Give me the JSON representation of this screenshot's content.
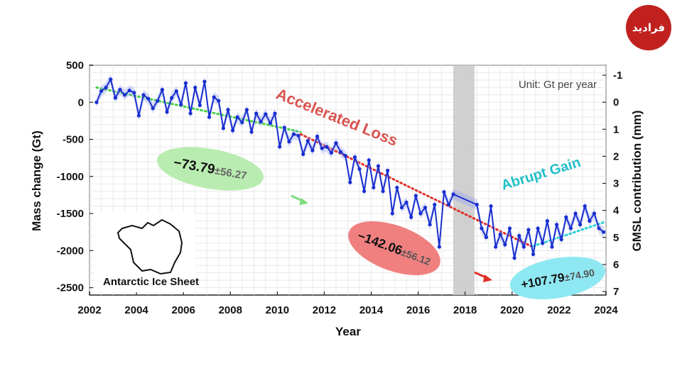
{
  "logo": {
    "text": "فرادید"
  },
  "chart_data": {
    "type": "line",
    "xlabel": "Year",
    "ylabel": "Mass change (Gt)",
    "y2label": "GMSL contribution (mm)",
    "xlim": [
      2002,
      2024
    ],
    "ylim": [
      -2600,
      500
    ],
    "y2lim": [
      7,
      -1
    ],
    "xticks": [
      "2002",
      "2004",
      "2006",
      "2008",
      "2010",
      "2012",
      "2014",
      "2016",
      "2018",
      "2020",
      "2022",
      "2024"
    ],
    "yticks": [
      "500",
      "0",
      "-500",
      "-1000",
      "-1500",
      "-2000",
      "-2500"
    ],
    "y2ticks": [
      "-1",
      "0",
      "1",
      "2",
      "3",
      "4",
      "5",
      "6",
      "7"
    ],
    "grid": true,
    "unit_note": "Unit: Gt per year",
    "gap_band": {
      "x0": 2017.5,
      "x1": 2018.4
    },
    "inset_label": "Antarctic Ice Sheet",
    "phase_labels": [
      {
        "text": "Accelerated Loss",
        "color": "#d9534f"
      },
      {
        "text": "Abrupt Gain",
        "color": "#22bfc8"
      }
    ],
    "trend_rates": [
      {
        "value": "−73.79",
        "uncertainty": "±56.27",
        "fill": "#b9ecb0"
      },
      {
        "value": "−142.06",
        "uncertainty": "±56.12",
        "fill": "#f08080"
      },
      {
        "value": "+107.79",
        "uncertainty": "±74.90",
        "fill": "#8ee8f2"
      }
    ],
    "trend_lines": [
      {
        "name": "2002-2011",
        "color": "#46d246",
        "x": [
          2002.3,
          2011.0
        ],
        "y": [
          200,
          -400
        ]
      },
      {
        "name": "2011-2020",
        "color": "#e0302a",
        "x": [
          2011.0,
          2020.8
        ],
        "y": [
          -430,
          -1940
        ]
      },
      {
        "name": "2021-2023",
        "color": "#2ad0d8",
        "x": [
          2020.9,
          2023.9
        ],
        "y": [
          -1940,
          -1620
        ]
      }
    ],
    "series": [
      {
        "color": "#1a2fd0",
        "x": [
          2002.3,
          2002.5,
          2002.7,
          2002.9,
          2003.1,
          2003.3,
          2003.5,
          2003.7,
          2003.9,
          2004.1,
          2004.3,
          2004.5,
          2004.7,
          2004.9,
          2005.1,
          2005.3,
          2005.5,
          2005.7,
          2005.9,
          2006.1,
          2006.3,
          2006.5,
          2006.7,
          2006.9,
          2007.1,
          2007.3,
          2007.5,
          2007.7,
          2007.9,
          2008.1,
          2008.3,
          2008.5,
          2008.7,
          2008.9,
          2009.1,
          2009.3,
          2009.5,
          2009.7,
          2009.9,
          2010.1,
          2010.3,
          2010.5,
          2010.7,
          2010.9,
          2011.1,
          2011.3,
          2011.5,
          2011.7,
          2011.9,
          2012.1,
          2012.3,
          2012.5,
          2012.7,
          2012.9,
          2013.1,
          2013.3,
          2013.5,
          2013.7,
          2013.9,
          2014.1,
          2014.3,
          2014.5,
          2014.7,
          2014.9,
          2015.1,
          2015.3,
          2015.5,
          2015.7,
          2015.9,
          2016.1,
          2016.3,
          2016.5,
          2016.7,
          2016.9,
          2017.1,
          2017.3,
          2017.5,
          2018.5,
          2018.7,
          2018.9,
          2019.1,
          2019.3,
          2019.5,
          2019.7,
          2019.9,
          2020.1,
          2020.3,
          2020.5,
          2020.7,
          2020.9,
          2021.1,
          2021.3,
          2021.5,
          2021.7,
          2021.9,
          2022.1,
          2022.3,
          2022.5,
          2022.7,
          2022.9,
          2023.1,
          2023.3,
          2023.5,
          2023.7,
          2023.9
        ],
        "y": [
          0,
          150,
          200,
          310,
          60,
          170,
          100,
          160,
          130,
          -180,
          100,
          50,
          -80,
          20,
          170,
          -130,
          60,
          150,
          -30,
          260,
          -150,
          200,
          -40,
          280,
          -200,
          70,
          20,
          -350,
          -100,
          -380,
          -200,
          -270,
          -100,
          -400,
          -150,
          -260,
          -160,
          -280,
          -150,
          -600,
          -340,
          -530,
          -430,
          -450,
          -700,
          -520,
          -650,
          -460,
          -620,
          -600,
          -680,
          -550,
          -670,
          -720,
          -1080,
          -740,
          -900,
          -1200,
          -780,
          -1150,
          -860,
          -1200,
          -920,
          -1500,
          -1150,
          -1420,
          -1350,
          -1550,
          -1260,
          -1500,
          -1420,
          -1650,
          -1380,
          -1950,
          -1210,
          -1380,
          -1240,
          -1380,
          -1700,
          -1820,
          -1400,
          -1950,
          -1780,
          -1920,
          -1700,
          -2100,
          -1800,
          -1950,
          -1720,
          -2050,
          -1700,
          -1900,
          -1600,
          -1950,
          -1650,
          -1850,
          -1550,
          -1700,
          -1500,
          -1650,
          -1400,
          -1600,
          -1500,
          -1700,
          -1750
        ]
      }
    ]
  }
}
